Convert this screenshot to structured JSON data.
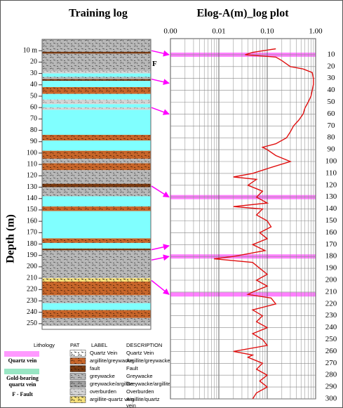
{
  "chart_data": [
    {
      "type": "strip-log",
      "title": "Training log",
      "y_label": "Depth (m)",
      "ylim": [
        0,
        255
      ],
      "yticks": [
        {
          "value": 10,
          "label": "10 m"
        },
        20,
        30,
        40,
        50,
        60,
        70,
        80,
        90,
        100,
        110,
        120,
        130,
        140,
        150,
        160,
        170,
        180,
        190,
        200,
        210,
        220,
        230,
        240,
        250
      ],
      "layers": [
        {
          "top": 0,
          "bottom": 28,
          "lithology": 3
        },
        {
          "top": 11,
          "bottom": 12.5,
          "lithology": 2
        },
        {
          "top": 28,
          "bottom": 30,
          "lithology": 5
        },
        {
          "top": 30,
          "bottom": 33,
          "color": "#80ffff"
        },
        {
          "top": 33,
          "bottom": 35,
          "lithology": 3
        },
        {
          "top": 35,
          "bottom": 36.5,
          "lithology": 2
        },
        {
          "top": 36.5,
          "bottom": 42,
          "color": "#80ffff"
        },
        {
          "top": 42,
          "bottom": 48,
          "lithology": 1
        },
        {
          "top": 48,
          "bottom": 53,
          "color": "#80ffff"
        },
        {
          "top": 53,
          "bottom": 57,
          "lithology": 5
        },
        {
          "top": 57,
          "bottom": 60,
          "color": "#80ffff"
        },
        {
          "top": 60,
          "bottom": 62,
          "lithology": 5
        },
        {
          "top": 62,
          "bottom": 84,
          "color": "#80ffff"
        },
        {
          "top": 84,
          "bottom": 89,
          "lithology": 1
        },
        {
          "top": 89,
          "bottom": 98,
          "color": "#80ffff"
        },
        {
          "top": 98,
          "bottom": 105,
          "lithology": 1
        },
        {
          "top": 105,
          "bottom": 109,
          "lithology": 3
        },
        {
          "top": 109,
          "bottom": 115,
          "lithology": 1
        },
        {
          "top": 115,
          "bottom": 127,
          "lithology": 3
        },
        {
          "top": 127,
          "bottom": 130,
          "lithology": 2
        },
        {
          "top": 130,
          "bottom": 138,
          "lithology": 3
        },
        {
          "top": 138,
          "bottom": 147,
          "color": "#80ffff"
        },
        {
          "top": 147,
          "bottom": 151,
          "lithology": 1
        },
        {
          "top": 151,
          "bottom": 175,
          "color": "#80ffff"
        },
        {
          "top": 175,
          "bottom": 179,
          "lithology": 1
        },
        {
          "top": 179,
          "bottom": 184,
          "color": "#80ffff"
        },
        {
          "top": 184,
          "bottom": 185.5,
          "lithology": 2
        },
        {
          "top": 185.5,
          "bottom": 210,
          "lithology": 3
        },
        {
          "top": 210,
          "bottom": 213,
          "lithology": 6
        },
        {
          "top": 213,
          "bottom": 225,
          "lithology": 1
        },
        {
          "top": 225,
          "bottom": 232,
          "lithology": 3
        },
        {
          "top": 232,
          "bottom": 238,
          "color": "#80ffff"
        },
        {
          "top": 238,
          "bottom": 245,
          "lithology": 1
        },
        {
          "top": 245,
          "bottom": 252,
          "lithology": 3
        }
      ],
      "fault_marker": {
        "label": "F",
        "depth": 22
      }
    },
    {
      "type": "line",
      "title": "Elog-A(m)_log plot",
      "log_x": true,
      "xlim": [
        0.001,
        1
      ],
      "xticks": [
        {
          "value": 0.001,
          "label": "0.00"
        },
        {
          "value": 0.01,
          "label": "0.01"
        },
        {
          "value": 0.1,
          "label": "0.10"
        },
        {
          "value": 1,
          "label": "1.00"
        }
      ],
      "x_minor_ticks": [
        0.002,
        0.003,
        0.004,
        0.005,
        0.006,
        0.007,
        0.008,
        0.009,
        0.02,
        0.03,
        0.04,
        0.05,
        0.06,
        0.07,
        0.08,
        0.09,
        0.2,
        0.3,
        0.4,
        0.5,
        0.6,
        0.7,
        0.8,
        0.9
      ],
      "ylim": [
        0,
        300
      ],
      "yticks": [
        10,
        20,
        30,
        40,
        50,
        60,
        70,
        80,
        90,
        100,
        110,
        120,
        130,
        140,
        150,
        160,
        170,
        180,
        190,
        200,
        210,
        220,
        230,
        240,
        250,
        260,
        270,
        280,
        290,
        300
      ],
      "grid": true,
      "depth": [
        5,
        8,
        10,
        12,
        15,
        20,
        22,
        25,
        30,
        35,
        40,
        45,
        50,
        55,
        60,
        65,
        70,
        75,
        80,
        85,
        88,
        90,
        95,
        100,
        105,
        110,
        113,
        115,
        120,
        125,
        130,
        135,
        138,
        140,
        145,
        150,
        155,
        160,
        165,
        170,
        175,
        180,
        182,
        185,
        190,
        195,
        200,
        205,
        210,
        212,
        215,
        220,
        225,
        230,
        235,
        240,
        245,
        250,
        255,
        260,
        263,
        265,
        270,
        275,
        280,
        285,
        290,
        295,
        300
      ],
      "series": [
        {
          "color": "#e01010",
          "values": [
            0.15,
            0.05,
            0.035,
            0.15,
            0.2,
            0.3,
            0.55,
            0.85,
            0.9,
            0.9,
            0.85,
            0.8,
            0.7,
            0.6,
            0.55,
            0.45,
            0.35,
            0.3,
            0.25,
            0.15,
            0.08,
            0.1,
            0.15,
            0.3,
            0.12,
            0.05,
            0.02,
            0.06,
            0.04,
            0.08,
            0.06,
            0.1,
            0.02,
            0.08,
            0.06,
            0.1,
            0.12,
            0.07,
            0.1,
            0.05,
            0.09,
            0.02,
            0.008,
            0.05,
            0.07,
            0.1,
            0.06,
            0.1,
            0.05,
            0.04,
            0.12,
            0.15,
            0.05,
            0.08,
            0.06,
            0.1,
            0.05,
            0.08,
            0.1,
            0.02,
            0.05,
            0.04,
            0.08,
            0.06,
            0.1,
            0.07,
            0.1,
            0.06,
            0.05
          ]
        }
      ],
      "highlight_depths": [
        10,
        130,
        180,
        212
      ],
      "highlight_color": "#ff80ff"
    }
  ],
  "links": [
    {
      "from": 10,
      "to": 10
    },
    {
      "from": 35,
      "to": 34
    },
    {
      "from": 60,
      "to": 60
    },
    {
      "from": 129,
      "to": 130
    },
    {
      "from": 185,
      "to": 171
    },
    {
      "from": 194,
      "to": 180
    },
    {
      "from": 212,
      "to": 212
    }
  ],
  "link_color": "#ff00ff",
  "legend": {
    "headers": [
      "Lithology",
      "PAT",
      "LABEL",
      "DESCRIPTION"
    ],
    "rows": [
      {
        "label": "Quartz Vein",
        "description": "Quartz Vein",
        "color": "#ffffff",
        "mark_color": "#000000"
      },
      {
        "label": "argillite/greywacke",
        "description": "Argillite/greywacke",
        "color": "#c8662a",
        "mark_color": "#4a2008"
      },
      {
        "label": "fault",
        "description": "Fault",
        "color": "#7a3a10",
        "mark_color": "#2a1004"
      },
      {
        "label": "greywacke",
        "description": "Greywacke",
        "color": "#b8b8b8",
        "mark_color": "#4a4a4a"
      },
      {
        "label": "greywacke/argillite",
        "description": "Greywacke/argillite",
        "color": "#a0a0a0",
        "mark_color": "#3a3a3a"
      },
      {
        "label": "overburden",
        "description": "Overburden",
        "color": "#d4d4d4",
        "mark_color": "#808080"
      },
      {
        "label": "argillite-quartz vein",
        "description": "Argillite/quartz vein",
        "color": "#f5e07a",
        "mark_color": "#000000"
      }
    ]
  },
  "key": [
    {
      "label": "Quartz vein",
      "color": "#ff99ff"
    },
    {
      "label": "Gold-bearing quartz vein",
      "color": "#99e6c4"
    },
    {
      "label": "F - Fault"
    }
  ]
}
